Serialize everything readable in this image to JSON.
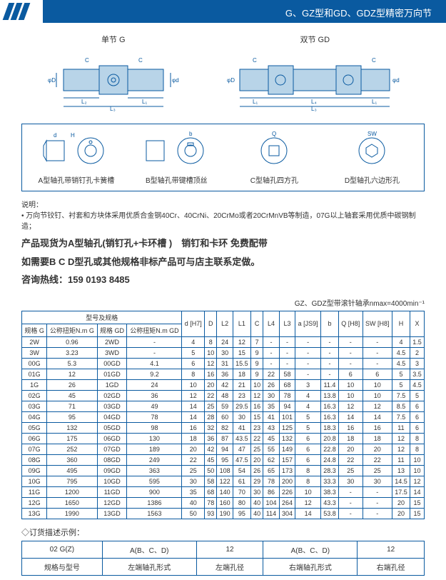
{
  "header": {
    "title": "G、GZ型和GD、GDZ型精密万向节"
  },
  "top_diagrams": {
    "left": {
      "label": "单节 G",
      "dims": [
        "C",
        "C",
        "L₂",
        "L₁",
        "L₃",
        "φD",
        "φd"
      ]
    },
    "right": {
      "label": "双节 GD",
      "dims": [
        "C",
        "C",
        "L₁",
        "L₄",
        "L₁",
        "L₃",
        "φD",
        "φd"
      ]
    }
  },
  "hole_types": {
    "a": "A型轴孔带销钉孔卡簧槽",
    "b": "B型轴孔带键槽顶丝",
    "c": "C型轴孔四方孔",
    "d": "D型轴孔六边形孔"
  },
  "notes": {
    "heading": "说明：",
    "line1": "• 万向节铰钉、衬套和方块体采用优质合金钢40Cr、40CrNi、20CrMo或者20CrMnVB等制造，07G以上轴套采用优质中碳钢制造；",
    "bold1": "产品现货为A型轴孔(销钉孔+卡环槽 )　销钉和卡环  免费配带",
    "bold2": "如需要B C D型孔或其他规格非标产品可与店主联系定做。",
    "bold3": "咨询热线：159 0193 8485"
  },
  "table_caption": "GZ、GDZ型带滚针轴承nmax=4000min⁻¹",
  "table_headers": {
    "group": "型号及规格",
    "g": "规格\nG",
    "torque_g": "公称扭矩N.m\nG",
    "gd": "规格\nGD",
    "torque_gd": "公称扭矩N.m\nGD",
    "d_h7": "d\n[H7]",
    "D": "D",
    "L2": "L2",
    "L1": "L1",
    "C": "C",
    "L4": "L4",
    "L3": "L3",
    "a": "a\n[JS9]",
    "b": "b",
    "Q": "Q\n[H8]",
    "SW": "SW\n[H8]",
    "H": "H",
    "X": "X"
  },
  "rows": [
    [
      "2W",
      "0.96",
      "2WD",
      "-",
      "4",
      "8",
      "24",
      "12",
      "7",
      "-",
      "-",
      "-",
      "-",
      "-",
      "-",
      "4",
      "1.5"
    ],
    [
      "3W",
      "3.23",
      "3WD",
      "-",
      "5",
      "10",
      "30",
      "15",
      "9",
      "-",
      "-",
      "-",
      "-",
      "-",
      "-",
      "4.5",
      "2"
    ],
    [
      "00G",
      "5.3",
      "00GD",
      "4.1",
      "6",
      "12",
      "31",
      "15.5",
      "9",
      "-",
      "-",
      "-",
      "-",
      "-",
      "-",
      "4.5",
      "3"
    ],
    [
      "01G",
      "12",
      "01GD",
      "9.2",
      "8",
      "16",
      "36",
      "18",
      "9",
      "22",
      "58",
      "-",
      "-",
      "6",
      "6",
      "5",
      "3.5"
    ],
    [
      "1G",
      "26",
      "1GD",
      "24",
      "10",
      "20",
      "42",
      "21",
      "10",
      "26",
      "68",
      "3",
      "11.4",
      "10",
      "10",
      "5",
      "4.5"
    ],
    [
      "02G",
      "45",
      "02GD",
      "36",
      "12",
      "22",
      "48",
      "23",
      "12",
      "30",
      "78",
      "4",
      "13.8",
      "10",
      "10",
      "7.5",
      "5"
    ],
    [
      "03G",
      "71",
      "03GD",
      "49",
      "14",
      "25",
      "59",
      "29.5",
      "16",
      "35",
      "94",
      "4",
      "16.3",
      "12",
      "12",
      "8.5",
      "6"
    ],
    [
      "04G",
      "95",
      "04GD",
      "78",
      "14",
      "28",
      "60",
      "30",
      "15",
      "41",
      "101",
      "5",
      "16.3",
      "14",
      "14",
      "7.5",
      "6"
    ],
    [
      "05G",
      "132",
      "05GD",
      "98",
      "16",
      "32",
      "82",
      "41",
      "23",
      "43",
      "125",
      "5",
      "18.3",
      "16",
      "16",
      "11",
      "6"
    ],
    [
      "06G",
      "175",
      "06GD",
      "130",
      "18",
      "36",
      "87",
      "43.5",
      "22",
      "45",
      "132",
      "6",
      "20.8",
      "18",
      "18",
      "12",
      "8"
    ],
    [
      "07G",
      "252",
      "07GD",
      "189",
      "20",
      "42",
      "94",
      "47",
      "25",
      "55",
      "149",
      "6",
      "22.8",
      "20",
      "20",
      "12",
      "8"
    ],
    [
      "08G",
      "360",
      "08GD",
      "249",
      "22",
      "45",
      "95",
      "47.5",
      "20",
      "62",
      "157",
      "6",
      "24.8",
      "22",
      "22",
      "11",
      "10"
    ],
    [
      "09G",
      "495",
      "09GD",
      "363",
      "25",
      "50",
      "108",
      "54",
      "26",
      "65",
      "173",
      "8",
      "28.3",
      "25",
      "25",
      "13",
      "10"
    ],
    [
      "10G",
      "795",
      "10GD",
      "595",
      "30",
      "58",
      "122",
      "61",
      "29",
      "78",
      "200",
      "8",
      "33.3",
      "30",
      "30",
      "14.5",
      "12"
    ],
    [
      "11G",
      "1200",
      "11GD",
      "900",
      "35",
      "68",
      "140",
      "70",
      "30",
      "86",
      "226",
      "10",
      "38.3",
      "-",
      "-",
      "17.5",
      "14"
    ],
    [
      "12G",
      "1650",
      "12GD",
      "1386",
      "40",
      "78",
      "160",
      "80",
      "40",
      "104",
      "264",
      "12",
      "43.3",
      "-",
      "-",
      "20",
      "15"
    ],
    [
      "13G",
      "1990",
      "13GD",
      "1563",
      "50",
      "93",
      "190",
      "95",
      "40",
      "114",
      "304",
      "14",
      "53.8",
      "-",
      "-",
      "20",
      "15"
    ]
  ],
  "order": {
    "title": "◇订货描述示例：",
    "row1": [
      "02 G(Z)",
      "A(B、C、D)",
      "12",
      "A(B、C、D)",
      "12"
    ],
    "row2": [
      "规格与型号",
      "左端轴孔形式",
      "左端孔径",
      "右端轴孔形式",
      "右端孔径"
    ]
  },
  "colors": {
    "primary": "#0a5aa0",
    "joint_fill": "#b8d4e8"
  }
}
